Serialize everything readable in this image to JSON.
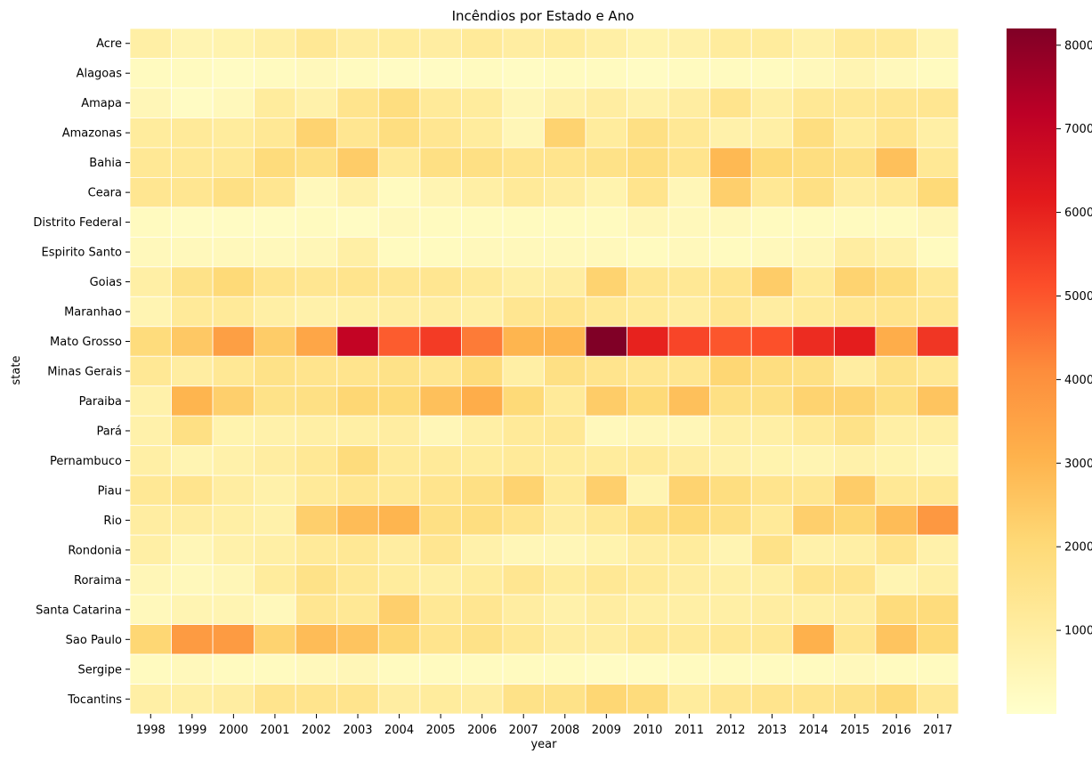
{
  "chart_data": {
    "type": "heatmap",
    "title": "Incêndios por Estado e Ano",
    "xlabel": "year",
    "ylabel": "state",
    "x": [
      "1998",
      "1999",
      "2000",
      "2001",
      "2002",
      "2003",
      "2004",
      "2005",
      "2006",
      "2007",
      "2008",
      "2009",
      "2010",
      "2011",
      "2012",
      "2013",
      "2014",
      "2015",
      "2016",
      "2017"
    ],
    "y": [
      "Acre",
      "Alagoas",
      "Amapa",
      "Amazonas",
      "Bahia",
      "Ceara",
      "Distrito Federal",
      "Espirito Santo",
      "Goias",
      "Maranhao",
      "Mato Grosso",
      "Minas Gerais",
      "Paraiba",
      "Pará",
      "Pernambuco",
      "Piau",
      "Rio",
      "Rondonia",
      "Roraima",
      "Santa Catarina",
      "Sao Paulo",
      "Sergipe",
      "Tocantins"
    ],
    "values": [
      [
        900,
        600,
        700,
        900,
        1300,
        1000,
        1100,
        1000,
        1200,
        1000,
        1100,
        900,
        700,
        800,
        1100,
        1100,
        800,
        1200,
        1200,
        600
      ],
      [
        300,
        300,
        200,
        300,
        400,
        300,
        200,
        200,
        300,
        200,
        300,
        300,
        200,
        300,
        300,
        300,
        400,
        600,
        400,
        300
      ],
      [
        500,
        200,
        400,
        1100,
        800,
        1500,
        1800,
        1200,
        1100,
        500,
        800,
        1000,
        800,
        1000,
        1500,
        900,
        1300,
        1300,
        1400,
        1400
      ],
      [
        1100,
        1200,
        1100,
        1300,
        2200,
        1400,
        1800,
        1400,
        1100,
        500,
        2200,
        1100,
        1700,
        1300,
        800,
        900,
        1800,
        1100,
        1500,
        900
      ],
      [
        1300,
        1300,
        1300,
        1900,
        1700,
        2400,
        1200,
        1700,
        1700,
        1500,
        1500,
        1600,
        1800,
        1500,
        2900,
        2000,
        1800,
        1700,
        2700,
        1300
      ],
      [
        1400,
        1400,
        1700,
        1400,
        400,
        800,
        300,
        600,
        900,
        1200,
        1000,
        700,
        1500,
        500,
        2300,
        1300,
        1700,
        1000,
        1200,
        2000
      ],
      [
        300,
        200,
        200,
        200,
        300,
        200,
        400,
        300,
        300,
        300,
        300,
        300,
        500,
        400,
        400,
        300,
        300,
        300,
        300,
        500
      ],
      [
        400,
        400,
        400,
        400,
        500,
        900,
        300,
        300,
        400,
        400,
        400,
        400,
        300,
        400,
        300,
        400,
        500,
        1000,
        800,
        300
      ],
      [
        900,
        1600,
        2000,
        1500,
        1400,
        1500,
        1400,
        1400,
        1200,
        900,
        1000,
        2200,
        1400,
        1300,
        1500,
        2400,
        1200,
        2200,
        1900,
        1300
      ],
      [
        600,
        1200,
        1200,
        900,
        800,
        900,
        1000,
        1000,
        900,
        1400,
        1500,
        1300,
        1200,
        1000,
        1400,
        1000,
        1200,
        1400,
        1500,
        1400
      ],
      [
        1900,
        2500,
        3600,
        2400,
        3400,
        7000,
        4900,
        5500,
        4400,
        3000,
        3000,
        8200,
        6000,
        5300,
        5000,
        5100,
        5800,
        6100,
        3200,
        5600
      ],
      [
        1300,
        1000,
        1300,
        1600,
        1500,
        1500,
        1600,
        1400,
        1900,
        900,
        1700,
        1500,
        1400,
        1400,
        2100,
        1800,
        1700,
        1000,
        1600,
        1300
      ],
      [
        800,
        3000,
        2300,
        1600,
        1700,
        2100,
        2000,
        2700,
        3200,
        2000,
        1200,
        2400,
        2000,
        2700,
        1700,
        1700,
        2200,
        2200,
        1800,
        2600
      ],
      [
        800,
        1700,
        700,
        800,
        900,
        900,
        1000,
        500,
        900,
        1200,
        1300,
        400,
        500,
        500,
        900,
        900,
        1200,
        1600,
        900,
        900
      ],
      [
        900,
        600,
        800,
        1000,
        1300,
        1900,
        1200,
        1200,
        1100,
        1200,
        1100,
        1100,
        1200,
        1000,
        800,
        700,
        600,
        800,
        700,
        500
      ],
      [
        1300,
        1500,
        1000,
        800,
        1200,
        1400,
        1300,
        1500,
        1700,
        2200,
        1200,
        2300,
        600,
        2200,
        1800,
        1500,
        1400,
        2400,
        1300,
        1300
      ],
      [
        1000,
        1000,
        900,
        800,
        2300,
        2800,
        3000,
        1700,
        1800,
        1500,
        1000,
        1300,
        1800,
        2000,
        1700,
        1200,
        2300,
        2100,
        2800,
        3800
      ],
      [
        900,
        500,
        800,
        900,
        1200,
        1300,
        1000,
        1400,
        800,
        500,
        500,
        700,
        1000,
        1100,
        600,
        1600,
        800,
        900,
        1500,
        800
      ],
      [
        500,
        400,
        500,
        1100,
        1600,
        1300,
        1100,
        900,
        1100,
        1400,
        1100,
        1300,
        1200,
        1000,
        900,
        900,
        1500,
        1500,
        600,
        900
      ],
      [
        400,
        600,
        600,
        400,
        1400,
        1300,
        2300,
        1300,
        1400,
        1000,
        800,
        1000,
        900,
        900,
        900,
        1000,
        900,
        1000,
        1900,
        1900
      ],
      [
        2100,
        3700,
        3700,
        2200,
        2800,
        2600,
        2100,
        1500,
        1600,
        1300,
        1000,
        1000,
        1300,
        1200,
        1300,
        1300,
        3100,
        1400,
        2600,
        2000
      ],
      [
        300,
        400,
        300,
        300,
        400,
        500,
        300,
        300,
        300,
        300,
        300,
        200,
        200,
        300,
        300,
        300,
        300,
        400,
        300,
        300
      ],
      [
        900,
        900,
        1000,
        1500,
        1500,
        1500,
        1000,
        1100,
        1000,
        1600,
        1600,
        2100,
        1900,
        1100,
        1400,
        1500,
        1500,
        1600,
        2000,
        1300
      ]
    ],
    "vmin": 0,
    "vmax": 8200,
    "colorbar_ticks": [
      "1000",
      "2000",
      "3000",
      "4000",
      "5000",
      "6000",
      "7000",
      "8000"
    ],
    "colormap": "YlOrRd",
    "colormap_stops": [
      "#ffffcc",
      "#ffeda0",
      "#fed976",
      "#feb24c",
      "#fd8d3c",
      "#fc4e2a",
      "#e31a1c",
      "#bd0026",
      "#800026"
    ],
    "cell_border_color": "#ffffff",
    "grid": false,
    "legend": "colorbar-right"
  }
}
